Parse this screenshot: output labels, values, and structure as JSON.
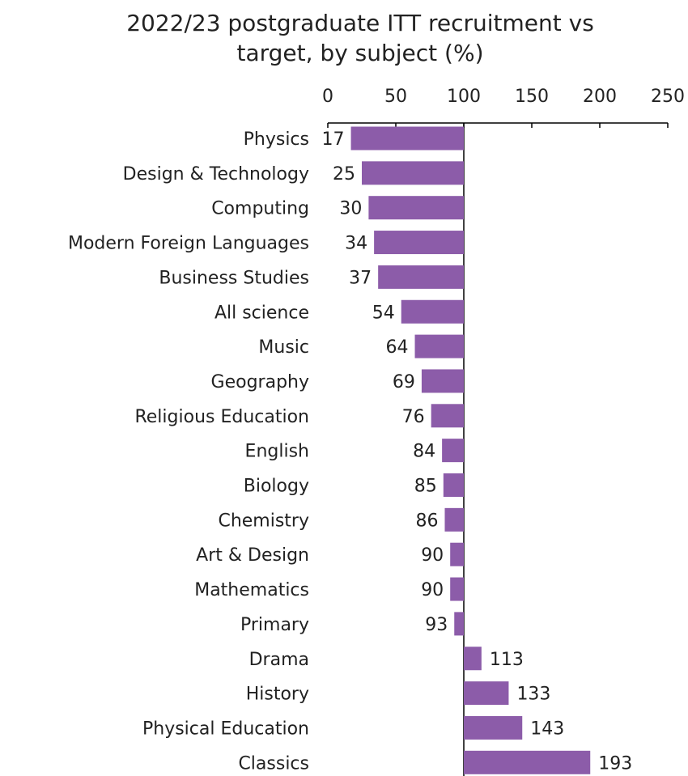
{
  "chart_data": {
    "type": "bar",
    "orientation": "horizontal",
    "title_line1": "2022/23 postgraduate ITT recruitment vs",
    "title_line2": "target, by subject (%)",
    "categories": [
      "Physics",
      "Design & Technology",
      "Computing",
      "Modern Foreign Languages",
      "Business Studies",
      "All science",
      "Music",
      "Geography",
      "Religious Education",
      "English",
      "Biology",
      "Chemistry",
      "Art & Design",
      "Mathematics",
      "Primary",
      "Drama",
      "History",
      "Physical Education",
      "Classics"
    ],
    "values": [
      17,
      25,
      30,
      34,
      37,
      54,
      64,
      69,
      76,
      84,
      85,
      86,
      90,
      90,
      93,
      113,
      133,
      143,
      193
    ],
    "x_ticks": [
      "0",
      "50",
      "100",
      "150",
      "200",
      "250"
    ],
    "xlim": [
      0,
      250
    ],
    "baseline": 100,
    "x_axis_position": "top",
    "grid": false,
    "legend": "none",
    "colors": {
      "bar": "#8c5ca9",
      "axis": "#000000",
      "text": "#222222"
    }
  }
}
